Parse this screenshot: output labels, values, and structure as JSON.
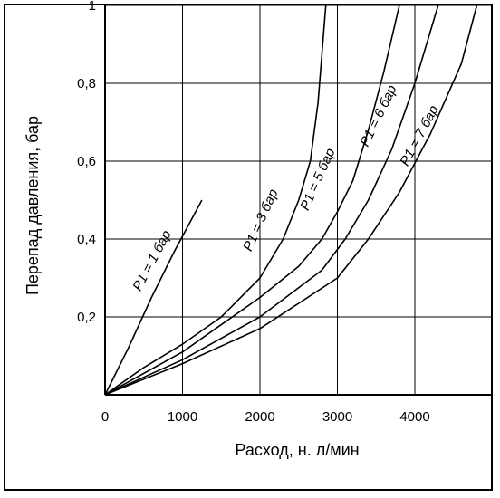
{
  "chart_data": {
    "type": "line",
    "xlabel": "Расход, н. л/мин",
    "ylabel": "Перепад давления, бар",
    "xlim": [
      0,
      5000
    ],
    "ylim": [
      0,
      1
    ],
    "x_ticks": [
      0,
      1000,
      2000,
      3000,
      4000
    ],
    "x_tick_labels": [
      "0",
      "1000",
      "2000",
      "3000",
      "4000"
    ],
    "y_ticks": [
      0.2,
      0.4,
      0.6,
      0.8,
      1
    ],
    "y_tick_labels": [
      "0,2",
      "0,4",
      "0,6",
      "0,8",
      "1"
    ],
    "grid": true,
    "series": [
      {
        "name": "P1 = 1 бар",
        "x": [
          0,
          300,
          600,
          900,
          1250
        ],
        "y": [
          0,
          0.12,
          0.25,
          0.37,
          0.5
        ]
      },
      {
        "name": "P1 = 3 бар",
        "x": [
          0,
          500,
          1000,
          1500,
          2000,
          2300,
          2500,
          2650,
          2750,
          2850
        ],
        "y": [
          0,
          0.07,
          0.13,
          0.2,
          0.3,
          0.4,
          0.5,
          0.6,
          0.75,
          1.0
        ]
      },
      {
        "name": "P1 = 5 бар",
        "x": [
          0,
          1000,
          2000,
          2500,
          2800,
          3000,
          3200,
          3400,
          3600,
          3800
        ],
        "y": [
          0,
          0.11,
          0.25,
          0.33,
          0.4,
          0.47,
          0.55,
          0.68,
          0.83,
          1.0
        ]
      },
      {
        "name": "P1 = 6 бар",
        "x": [
          0,
          1000,
          2000,
          2800,
          3100,
          3400,
          3700,
          4000,
          4300
        ],
        "y": [
          0,
          0.09,
          0.2,
          0.32,
          0.4,
          0.5,
          0.63,
          0.8,
          1.0
        ]
      },
      {
        "name": "P1 = 7 бар",
        "x": [
          0,
          1000,
          2000,
          3000,
          3400,
          3800,
          4200,
          4600,
          4800
        ],
        "y": [
          0,
          0.08,
          0.17,
          0.3,
          0.4,
          0.52,
          0.67,
          0.85,
          1.0
        ]
      }
    ]
  }
}
